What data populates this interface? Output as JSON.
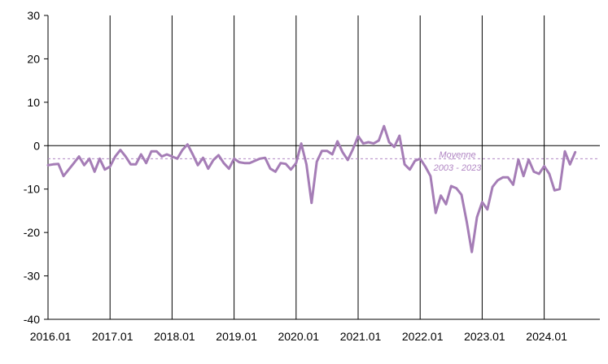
{
  "chart_data": {
    "type": "line",
    "title": "",
    "xlabel": "",
    "ylabel": "",
    "ylim": [
      -40,
      30
    ],
    "yticks": [
      30,
      20,
      10,
      0,
      -10,
      -20,
      -30,
      -40
    ],
    "xtick_labels": [
      "2016.01",
      "2017.01",
      "2018.01",
      "2019.01",
      "2020.01",
      "2021.01",
      "2022.01",
      "2023.01",
      "2024.01"
    ],
    "x_start": "2016.01",
    "grid": "vertical lines at each year",
    "series_color": "#a57db6",
    "average": {
      "value": -3,
      "label_line1": "Moyenne",
      "label_line2": "2003 - 2023",
      "color": "#b085c3"
    },
    "series": [
      {
        "values": [
          -4.5,
          -4.3,
          -4.2,
          -7.0,
          -5.5,
          -4.0,
          -2.5,
          -4.5,
          -3.0,
          -6.0,
          -3.0,
          -5.5,
          -4.8,
          -2.5,
          -1.0,
          -2.5,
          -4.3,
          -4.3,
          -2.0,
          -4.0,
          -1.3,
          -1.3,
          -2.5,
          -2.0,
          -2.5,
          -3.0,
          -1.0,
          0.3,
          -2.0,
          -4.5,
          -2.8,
          -5.3,
          -3.3,
          -2.2,
          -4.0,
          -5.3,
          -3.0,
          -3.8,
          -4.0,
          -4.0,
          -3.5,
          -3.0,
          -2.8,
          -5.3,
          -6.0,
          -4.0,
          -4.2,
          -5.5,
          -4.0,
          0.5,
          -4.3,
          -13.2,
          -3.7,
          -1.2,
          -1.2,
          -2.0,
          1.0,
          -1.5,
          -3.3,
          -0.8,
          2.2,
          0.5,
          0.8,
          0.5,
          1.2,
          4.5,
          0.8,
          -0.3,
          2.3,
          -4.3,
          -5.5,
          -3.5,
          -3.0,
          -4.8,
          -7.0,
          -15.5,
          -11.5,
          -13.5,
          -9.3,
          -9.8,
          -11.3,
          -17.5,
          -24.5,
          -16.5,
          -13.0,
          -14.7,
          -9.5,
          -8.0,
          -7.3,
          -7.3,
          -9.0,
          -3.2,
          -7.0,
          -3.2,
          -6.0,
          -6.5,
          -4.7,
          -6.5,
          -10.3,
          -10.0,
          -1.3,
          -4.3,
          -1.5
        ]
      }
    ]
  }
}
